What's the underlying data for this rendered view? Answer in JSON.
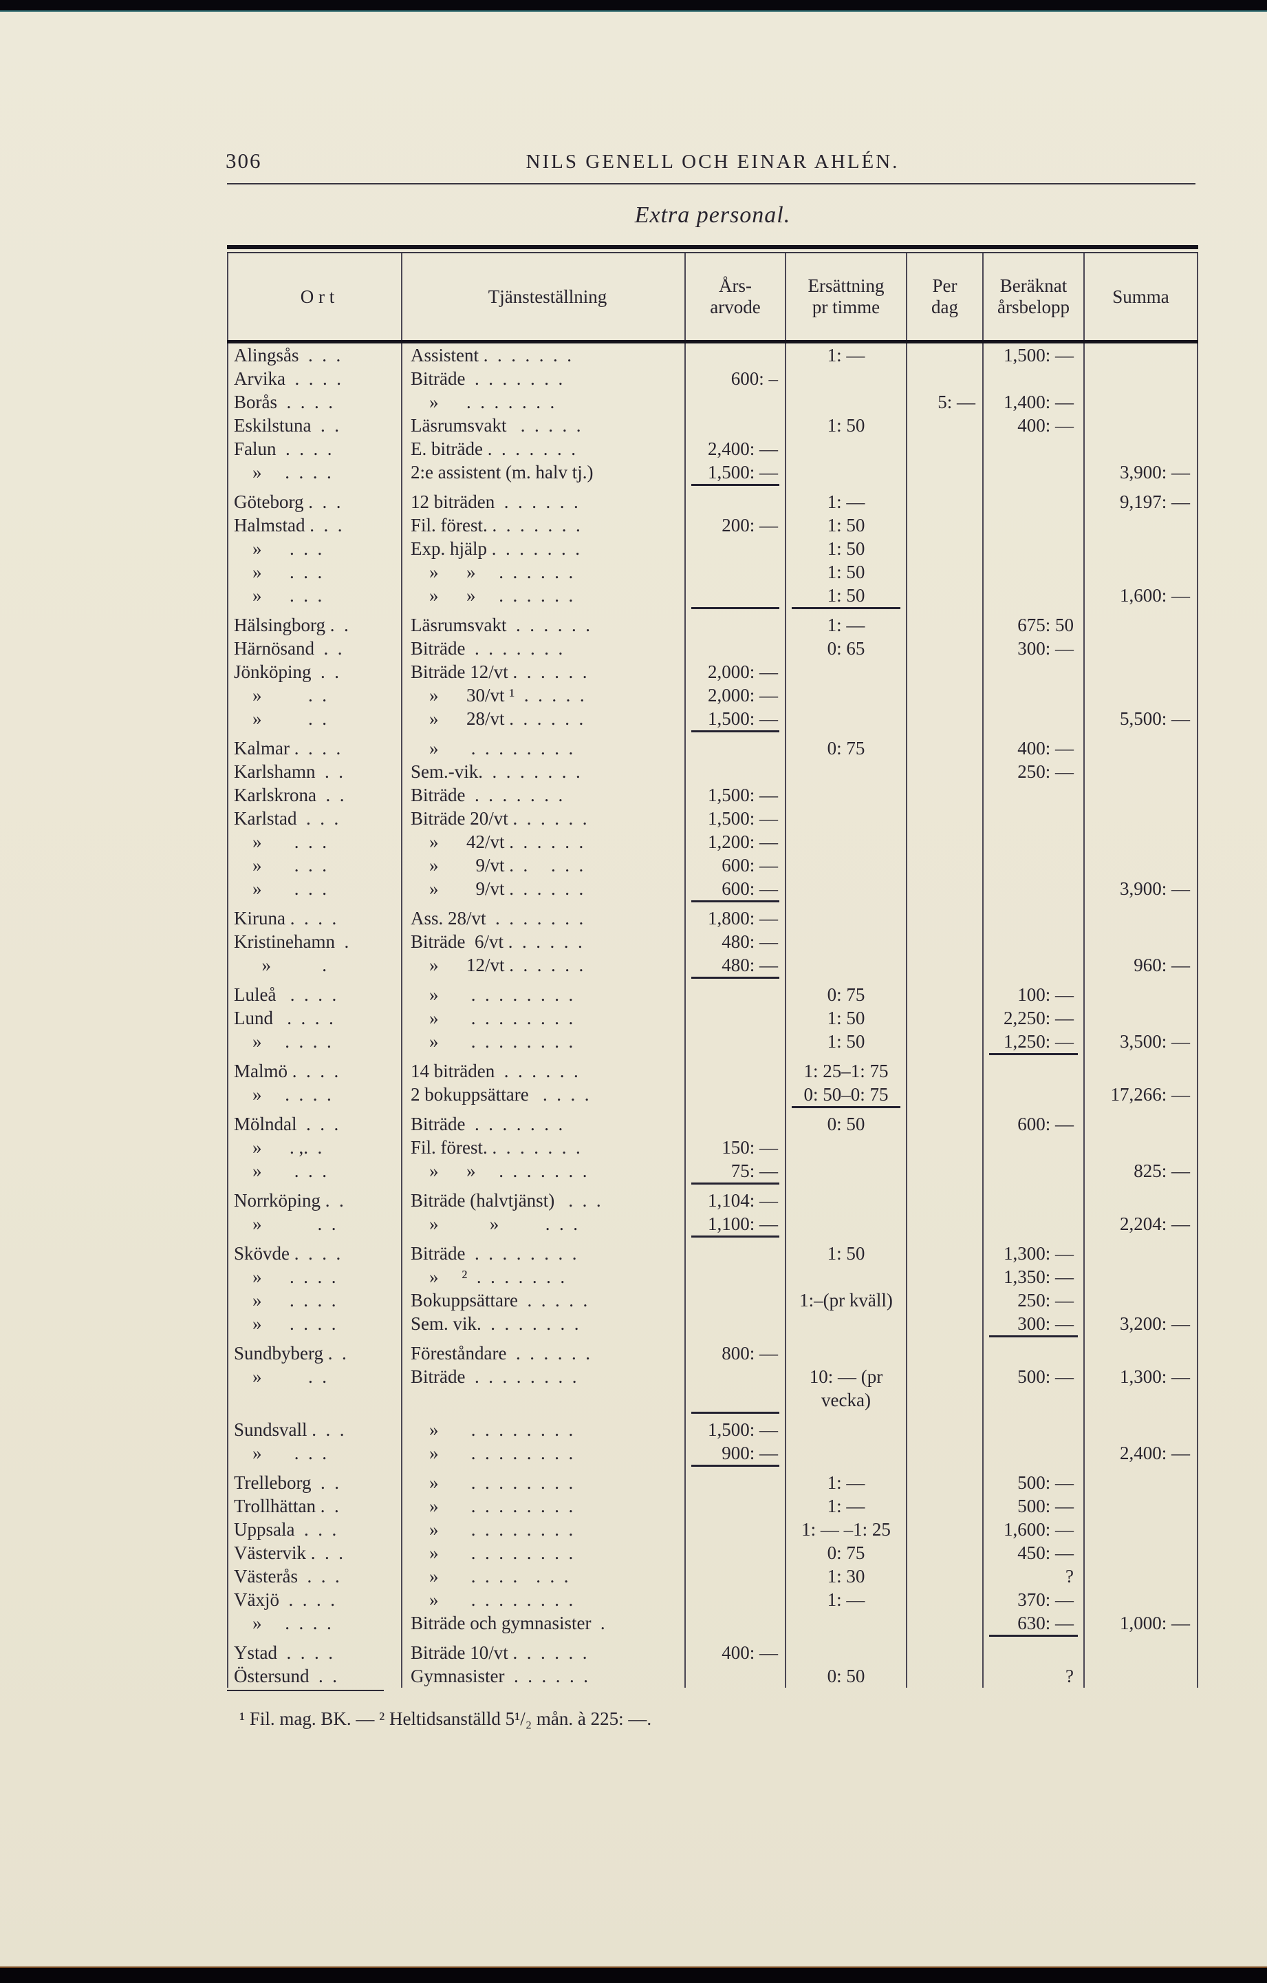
{
  "page": {
    "page_number": "306",
    "running_header": "NILS GENELL OCH EINAR AHLÉN.",
    "table_title": "Extra personal.",
    "footnote": "¹ Fil. mag. BK. — ² Heltidsanställd 5¹/₂ mån. à 225: —."
  },
  "table": {
    "columns": [
      {
        "key": "ort",
        "label": "O r t"
      },
      {
        "key": "tjanst",
        "label": "Tjänsteställning"
      },
      {
        "key": "arvode",
        "label": "Års-\narvode"
      },
      {
        "key": "timme",
        "label": "Ersättning\npr timme"
      },
      {
        "key": "dag",
        "label": "Per\ndag"
      },
      {
        "key": "beraknat",
        "label": "Beräknat\nårsbelopp"
      },
      {
        "key": "summa",
        "label": "Summa"
      }
    ],
    "rows": [
      {
        "ort": "Alingsås  .  .  .",
        "tjanst": "Assistent .  .  .  .  .  .  .",
        "timme": "1: —",
        "beraknat": "1,500: —"
      },
      {
        "ort": "Arvika  .  .  .  .",
        "tjanst": "Biträde  .  .  .  .  .  .  .",
        "arvode": "600: –"
      },
      {
        "ort": "Borås  .  .  .  .",
        "tjanst": "    »      .  .  .  .  .  .  .",
        "dag": "5: —",
        "beraknat": "1,400: —"
      },
      {
        "ort": "Eskilstuna  .  .",
        "tjanst": "Läsrumsvakt   .  .  .  .  .",
        "timme": "1: 50",
        "beraknat": "400: —"
      },
      {
        "ort": "Falun  .  .  .  .",
        "tjanst": "E. biträde .  .  .  .  .  .  .",
        "arvode": "2,400: —"
      },
      {
        "ort": "    »     .  .  .  .",
        "tjanst": "2:e assistent (m. halv tj.)",
        "arvode": "1,500: —",
        "summa": "3,900: —",
        "underline": [
          "arvode"
        ]
      },
      {
        "ort": "Göteborg .  .  .",
        "tjanst": "12 biträden  .  .  .  .  .  .",
        "timme": "1: —",
        "summa": "9,197: —"
      },
      {
        "ort": "Halmstad .  .  .",
        "tjanst": "Fil. förest. .  .  .  .  .  .  .",
        "arvode": "200: —",
        "timme": "1: 50"
      },
      {
        "ort": "    »      .  .  .",
        "tjanst": "Exp. hjälp .  .  .  .  .  .  .",
        "timme": "1: 50"
      },
      {
        "ort": "    »      .  .  .",
        "tjanst": "    »      »     .  .  .  .  .  .",
        "timme": "1: 50"
      },
      {
        "ort": "    »      .  .  .",
        "tjanst": "    »      »     .  .  .  .  .  .",
        "timme": "1: 50",
        "summa": "1,600: —",
        "underline": [
          "arvode",
          "timme"
        ]
      },
      {
        "ort": "Hälsingborg .  .",
        "tjanst": "Läsrumsvakt  .  .  .  .  .  .",
        "timme": "1: —",
        "beraknat": "675: 50"
      },
      {
        "ort": "Härnösand  .  .",
        "tjanst": "Biträde  .  .  .  .  .  .  .",
        "timme": "0: 65",
        "beraknat": "300: —"
      },
      {
        "ort": "Jönköping  .  .",
        "tjanst": "Biträde 12/vt .  .  .  .  .  .",
        "arvode": "2,000: —"
      },
      {
        "ort": "    »          .  .",
        "tjanst": "    »      30/vt ¹  .  .  .  .  .",
        "arvode": "2,000: —"
      },
      {
        "ort": "    »          .  .",
        "tjanst": "    »      28/vt .  .  .  .  .  .",
        "arvode": "1,500: —",
        "summa": "5,500: —",
        "underline": [
          "arvode"
        ]
      },
      {
        "ort": "Kalmar .  .  .  .",
        "tjanst": "    »       .  .  .  .  .  .  .  .",
        "timme": "0: 75",
        "beraknat": "400: —"
      },
      {
        "ort": "Karlshamn  .  .",
        "tjanst": "Sem.-vik.  .  .  .  .  .  .  .",
        "beraknat": "250: —"
      },
      {
        "ort": "Karlskrona  .  .",
        "tjanst": "Biträde  .  .  .  .  .  .  .",
        "arvode": "1,500: —"
      },
      {
        "ort": "Karlstad  .  .  .",
        "tjanst": "Biträde 20/vt .  .  .  .  .  .",
        "arvode": "1,500: —"
      },
      {
        "ort": "    »       .  .  .",
        "tjanst": "    »      42/vt .  .  .  .  .  .",
        "arvode": "1,200: —"
      },
      {
        "ort": "    »       .  .  .",
        "tjanst": "    »        9/vt .  .     .  .  .",
        "arvode": "600: —"
      },
      {
        "ort": "    »       .  .  .",
        "tjanst": "    »        9/vt .  .  .  .  .  .",
        "arvode": "600: —",
        "summa": "3,900: —",
        "underline": [
          "arvode"
        ]
      },
      {
        "ort": "Kiruna .  .  .  .",
        "tjanst": "Ass. 28/vt  .  .  .  .  .  .  .",
        "arvode": "1,800: —"
      },
      {
        "ort": "Kristinehamn  .",
        "tjanst": "Biträde  6/vt .  .  .  .  .  .",
        "arvode": "480: —"
      },
      {
        "ort": "      »           .",
        "tjanst": "    »      12/vt .  .  .  .  .  .",
        "arvode": "480: —",
        "summa": "960: —",
        "underline": [
          "arvode"
        ]
      },
      {
        "ort": "Luleå   .  .  .  .",
        "tjanst": "    »       .  .  .  .  .  .  .  .",
        "timme": "0: 75",
        "beraknat": "100: —"
      },
      {
        "ort": "Lund   .  .  .  .",
        "tjanst": "    »       .  .  .  .  .  .  .  .",
        "timme": "1: 50",
        "beraknat": "2,250: —"
      },
      {
        "ort": "    »     .  .  .  .",
        "tjanst": "    »       .  .  .  .  .  .  .  .",
        "timme": "1: 50",
        "beraknat": "1,250: —",
        "summa": "3,500: —",
        "underline": [
          "beraknat"
        ]
      },
      {
        "ort": "Malmö .  .  .  .",
        "tjanst": "14 biträden  .  .  .  .  .  .",
        "timme": "1: 25–1: 75"
      },
      {
        "ort": "    »     .  .  .  .",
        "tjanst": "2 bokuppsättare   .  .  .  .",
        "timme": "0: 50–0: 75",
        "summa": "17,266: —",
        "underline": [
          "timme"
        ]
      },
      {
        "ort": "Mölndal  .  .  .",
        "tjanst": "Biträde  .  .  .  .  .  .  .",
        "timme": "0: 50",
        "beraknat": "600: —"
      },
      {
        "ort": "    »      . ,.  .",
        "tjanst": "Fil. förest. .  .  .  .  .  .  .",
        "arvode": "150: —"
      },
      {
        "ort": "    »       .  .  .",
        "tjanst": "    »      »     .  .  .  .  .  .  .",
        "arvode": "75: —",
        "summa": "825: —",
        "underline": [
          "arvode"
        ]
      },
      {
        "ort": "Norrköping .  .",
        "tjanst": "Biträde (halvtjänst)   .  .  .",
        "arvode": "1,104: —"
      },
      {
        "ort": "    »            .  .",
        "tjanst": "    »           »          .  .  .",
        "arvode": "1,100: —",
        "summa": "2,204: —",
        "underline": [
          "arvode"
        ]
      },
      {
        "ort": "Skövde .  .  .  .",
        "tjanst": "Biträde  .  .  .  .  .  .  .  .",
        "timme": "1: 50",
        "beraknat": "1,300: —"
      },
      {
        "ort": "    »      .  .  .  .",
        "tjanst": "    »     ²  .  .  .  .  .  .  .",
        "beraknat": "1,350: —"
      },
      {
        "ort": "    »      .  .  .  .",
        "tjanst": "Bokuppsättare  .  .  .  .  .",
        "timme": "1:–(pr kväll)",
        "beraknat": "250: —"
      },
      {
        "ort": "    »      .  .  .  .",
        "tjanst": "Sem. vik.  .  .  .  .  .  .  .",
        "beraknat": "300: —",
        "summa": "3,200: —",
        "underline": [
          "beraknat"
        ]
      },
      {
        "ort": "Sundbyberg .  .",
        "tjanst": "Föreståndare  .  .  .  .  .  .",
        "arvode": "800: —"
      },
      {
        "ort": "    »          .  .",
        "tjanst": "Biträde  .  .  .  .  .  .  .  .",
        "timme": "10: — (pr\nvecka)",
        "beraknat": "500: —",
        "summa": "1,300: —",
        "underline": [
          "arvode"
        ]
      },
      {
        "ort": "Sundsvall .  .  .",
        "tjanst": "    »       .  .  .  .  .  .  .  .",
        "arvode": "1,500: —"
      },
      {
        "ort": "    »       .  .  .",
        "tjanst": "    »       .  .  .  .  .  .  .  .",
        "arvode": "900: —",
        "summa": "2,400: —",
        "underline": [
          "arvode"
        ]
      },
      {
        "ort": "Trelleborg  .  .",
        "tjanst": "    »       .  .  .  .  .  .  .  .",
        "timme": "1: —",
        "beraknat": "500: —"
      },
      {
        "ort": "Trollhättan .  .",
        "tjanst": "    »       .  .  .  .  .  .  .  .",
        "timme": "1: —",
        "beraknat": "500: —"
      },
      {
        "ort": "Uppsala  .  .  .",
        "tjanst": "    »       .  .  .  .  .  .  .  .",
        "timme": "1: — –1: 25",
        "beraknat": "1,600: —"
      },
      {
        "ort": "Västervik .  .  .",
        "tjanst": "    »       .  .  .  .  .  .  .  .",
        "timme": "0: 75",
        "beraknat": "450: —"
      },
      {
        "ort": "Västerås  .  .  .",
        "tjanst": "    »       .  .  .  .    .  .  .",
        "timme": "1: 30",
        "beraknat": "?"
      },
      {
        "ort": "Växjö  .  .  .  .",
        "tjanst": "    »       .  .  .  .  .  .  .  .",
        "timme": "1: —",
        "beraknat": "370: —"
      },
      {
        "ort": "    »     .  .  .  .",
        "tjanst": "Biträde och gymnasister  .",
        "beraknat": "630: —",
        "summa": "1,000: —",
        "underline": [
          "beraknat"
        ]
      },
      {
        "ort": "Ystad  .  .  .  .",
        "tjanst": "Biträde 10/vt .  .  .  .  .  .",
        "arvode": "400: —"
      },
      {
        "ort": "Östersund  .  .",
        "tjanst": "Gymnasister  .  .  .  .  .  .",
        "timme": "0: 50",
        "beraknat": "?"
      }
    ]
  }
}
